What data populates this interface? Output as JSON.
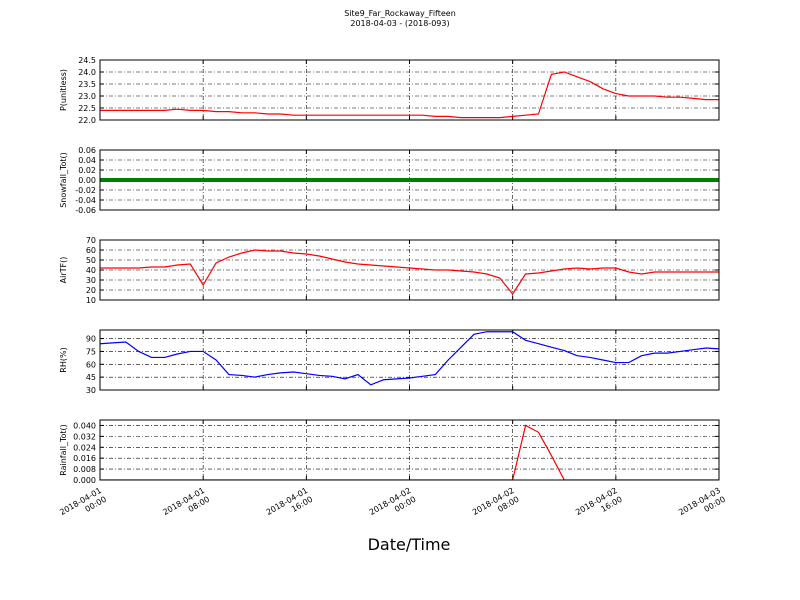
{
  "chart_data": [
    {
      "type": "line",
      "title": "Site9_Far_Rockaway_Fifteen",
      "subtitle": "2018-04-03 - (2018-093)",
      "ylabel": "P(unitless)",
      "color": "#ff0000",
      "x": [
        "2018-04-01 00:00",
        "2018-04-01 01:00",
        "2018-04-01 02:00",
        "2018-04-01 03:00",
        "2018-04-01 04:00",
        "2018-04-01 05:00",
        "2018-04-01 06:00",
        "2018-04-01 07:00",
        "2018-04-01 08:00",
        "2018-04-01 09:00",
        "2018-04-01 10:00",
        "2018-04-01 11:00",
        "2018-04-01 12:00",
        "2018-04-01 13:00",
        "2018-04-01 14:00",
        "2018-04-01 15:00",
        "2018-04-01 16:00",
        "2018-04-01 17:00",
        "2018-04-01 18:00",
        "2018-04-01 19:00",
        "2018-04-01 20:00",
        "2018-04-01 21:00",
        "2018-04-01 22:00",
        "2018-04-01 23:00",
        "2018-04-02 00:00",
        "2018-04-02 01:00",
        "2018-04-02 02:00",
        "2018-04-02 03:00",
        "2018-04-02 04:00",
        "2018-04-02 05:00",
        "2018-04-02 06:00",
        "2018-04-02 07:00",
        "2018-04-02 08:00",
        "2018-04-02 09:00",
        "2018-04-02 10:00",
        "2018-04-02 11:00",
        "2018-04-02 12:00",
        "2018-04-02 13:00",
        "2018-04-02 14:00",
        "2018-04-02 15:00",
        "2018-04-02 16:00",
        "2018-04-02 17:00",
        "2018-04-02 18:00",
        "2018-04-02 19:00",
        "2018-04-02 20:00",
        "2018-04-02 21:00",
        "2018-04-02 22:00",
        "2018-04-02 23:00",
        "2018-04-03 00:00"
      ],
      "values": [
        22.4,
        22.4,
        22.4,
        22.4,
        22.4,
        22.4,
        22.45,
        22.4,
        22.4,
        22.35,
        22.35,
        22.3,
        22.3,
        22.25,
        22.25,
        22.2,
        22.2,
        22.2,
        22.2,
        22.2,
        22.2,
        22.2,
        22.2,
        22.2,
        22.2,
        22.2,
        22.15,
        22.15,
        22.1,
        22.1,
        22.1,
        22.1,
        22.15,
        22.2,
        22.25,
        23.9,
        24.0,
        23.8,
        23.6,
        23.3,
        23.1,
        23.0,
        23.0,
        23.0,
        22.95,
        22.95,
        22.9,
        22.85,
        22.85
      ],
      "xlim": [
        "2018-04-01 00:00",
        "2018-04-03 00:00"
      ],
      "ylim": [
        22.0,
        24.5
      ],
      "yticks": [
        {
          "value": 22.0,
          "label": "22.0"
        },
        22.5,
        {
          "value": 23.0,
          "label": "23.0"
        },
        23.5,
        {
          "value": 24.0,
          "label": "24.0"
        },
        24.5
      ],
      "grid": true
    },
    {
      "type": "line",
      "ylabel": "Snowfall_Tot()",
      "color": "#008000",
      "x": [
        "2018-04-01 00:00",
        "2018-04-01 01:00",
        "2018-04-01 02:00",
        "2018-04-01 03:00",
        "2018-04-01 04:00",
        "2018-04-01 05:00",
        "2018-04-01 06:00",
        "2018-04-01 07:00",
        "2018-04-01 08:00",
        "2018-04-01 09:00",
        "2018-04-01 10:00",
        "2018-04-01 11:00",
        "2018-04-01 12:00",
        "2018-04-01 13:00",
        "2018-04-01 14:00",
        "2018-04-01 15:00",
        "2018-04-01 16:00",
        "2018-04-01 17:00",
        "2018-04-01 18:00",
        "2018-04-01 19:00",
        "2018-04-01 20:00",
        "2018-04-01 21:00",
        "2018-04-01 22:00",
        "2018-04-01 23:00",
        "2018-04-02 00:00",
        "2018-04-02 01:00",
        "2018-04-02 02:00",
        "2018-04-02 03:00",
        "2018-04-02 04:00",
        "2018-04-02 05:00",
        "2018-04-02 06:00",
        "2018-04-02 07:00",
        "2018-04-02 08:00",
        "2018-04-02 09:00",
        "2018-04-02 10:00",
        "2018-04-02 11:00",
        "2018-04-02 12:00",
        "2018-04-02 13:00",
        "2018-04-02 14:00",
        "2018-04-02 15:00",
        "2018-04-02 16:00",
        "2018-04-02 17:00",
        "2018-04-02 18:00",
        "2018-04-02 19:00",
        "2018-04-02 20:00",
        "2018-04-02 21:00",
        "2018-04-02 22:00",
        "2018-04-02 23:00",
        "2018-04-03 00:00"
      ],
      "values": [
        0,
        0,
        0,
        0,
        0,
        0,
        0,
        0,
        0,
        0,
        0,
        0,
        0,
        0,
        0,
        0,
        0,
        0,
        0,
        0,
        0,
        0,
        0,
        0,
        0,
        0,
        0,
        0,
        0,
        0,
        0,
        0,
        0,
        0,
        0,
        0,
        0,
        0,
        0,
        0,
        0,
        0,
        0,
        0,
        0,
        0,
        0,
        0,
        0
      ],
      "xlim": [
        "2018-04-01 00:00",
        "2018-04-03 00:00"
      ],
      "ylim": [
        -0.06,
        0.06
      ],
      "yticks": [
        -0.06,
        -0.04,
        -0.02,
        {
          "value": 0,
          "label": "0.00"
        },
        0.02,
        0.04,
        0.06
      ],
      "grid": true
    },
    {
      "type": "line",
      "ylabel": "AirTF()",
      "color": "#ff0000",
      "x": [
        "2018-04-01 00:00",
        "2018-04-01 01:00",
        "2018-04-01 02:00",
        "2018-04-01 03:00",
        "2018-04-01 04:00",
        "2018-04-01 05:00",
        "2018-04-01 06:00",
        "2018-04-01 07:00",
        "2018-04-01 08:00",
        "2018-04-01 09:00",
        "2018-04-01 10:00",
        "2018-04-01 11:00",
        "2018-04-01 12:00",
        "2018-04-01 13:00",
        "2018-04-01 14:00",
        "2018-04-01 15:00",
        "2018-04-01 16:00",
        "2018-04-01 17:00",
        "2018-04-01 18:00",
        "2018-04-01 19:00",
        "2018-04-01 20:00",
        "2018-04-01 21:00",
        "2018-04-01 22:00",
        "2018-04-01 23:00",
        "2018-04-02 00:00",
        "2018-04-02 01:00",
        "2018-04-02 02:00",
        "2018-04-02 03:00",
        "2018-04-02 04:00",
        "2018-04-02 05:00",
        "2018-04-02 06:00",
        "2018-04-02 07:00",
        "2018-04-02 08:00",
        "2018-04-02 09:00",
        "2018-04-02 10:00",
        "2018-04-02 11:00",
        "2018-04-02 12:00",
        "2018-04-02 13:00",
        "2018-04-02 14:00",
        "2018-04-02 15:00",
        "2018-04-02 16:00",
        "2018-04-02 17:00",
        "2018-04-02 18:00",
        "2018-04-02 19:00",
        "2018-04-02 20:00",
        "2018-04-02 21:00",
        "2018-04-02 22:00",
        "2018-04-02 23:00",
        "2018-04-03 00:00"
      ],
      "values": [
        42,
        42,
        42,
        42,
        43,
        43,
        45,
        46,
        25,
        47,
        53,
        57,
        60,
        59,
        59,
        57,
        56,
        54,
        51,
        48,
        46,
        45,
        44,
        43,
        42,
        41,
        40,
        40,
        39,
        38,
        36,
        32,
        16,
        36,
        37,
        39,
        41,
        42,
        41,
        42,
        42,
        38,
        36,
        38,
        38,
        38,
        38,
        38,
        38
      ],
      "xlim": [
        "2018-04-01 00:00",
        "2018-04-03 00:00"
      ],
      "ylim": [
        10,
        70
      ],
      "yticks": [
        10,
        20,
        30,
        40,
        50,
        60,
        70
      ],
      "grid": true
    },
    {
      "type": "line",
      "ylabel": "RH(%)",
      "color": "#0000ff",
      "x": [
        "2018-04-01 00:00",
        "2018-04-01 01:00",
        "2018-04-01 02:00",
        "2018-04-01 03:00",
        "2018-04-01 04:00",
        "2018-04-01 05:00",
        "2018-04-01 06:00",
        "2018-04-01 07:00",
        "2018-04-01 08:00",
        "2018-04-01 09:00",
        "2018-04-01 10:00",
        "2018-04-01 11:00",
        "2018-04-01 12:00",
        "2018-04-01 13:00",
        "2018-04-01 14:00",
        "2018-04-01 15:00",
        "2018-04-01 16:00",
        "2018-04-01 17:00",
        "2018-04-01 18:00",
        "2018-04-01 19:00",
        "2018-04-01 20:00",
        "2018-04-01 21:00",
        "2018-04-01 22:00",
        "2018-04-01 23:00",
        "2018-04-02 00:00",
        "2018-04-02 01:00",
        "2018-04-02 02:00",
        "2018-04-02 03:00",
        "2018-04-02 04:00",
        "2018-04-02 05:00",
        "2018-04-02 06:00",
        "2018-04-02 07:00",
        "2018-04-02 08:00",
        "2018-04-02 09:00",
        "2018-04-02 10:00",
        "2018-04-02 11:00",
        "2018-04-02 12:00",
        "2018-04-02 13:00",
        "2018-04-02 14:00",
        "2018-04-02 15:00",
        "2018-04-02 16:00",
        "2018-04-02 17:00",
        "2018-04-02 18:00",
        "2018-04-02 19:00",
        "2018-04-02 20:00",
        "2018-04-02 21:00",
        "2018-04-02 22:00",
        "2018-04-02 23:00",
        "2018-04-03 00:00"
      ],
      "values": [
        84,
        85,
        86,
        75,
        68,
        68,
        72,
        75,
        75,
        65,
        48,
        47,
        45,
        48,
        50,
        51,
        49,
        47,
        46,
        43,
        48,
        36,
        42,
        43,
        44,
        46,
        48,
        65,
        80,
        95,
        98,
        98,
        98,
        88,
        84,
        80,
        76,
        70,
        68,
        65,
        62,
        62,
        70,
        73,
        73,
        75,
        77,
        79,
        78
      ],
      "xlim": [
        "2018-04-01 00:00",
        "2018-04-03 00:00"
      ],
      "ylim": [
        30,
        100
      ],
      "yticks": [
        30,
        45,
        60,
        75,
        90
      ],
      "grid": true
    },
    {
      "type": "line",
      "ylabel": "Rainfall_Tot()",
      "xlabel": "Date/Time",
      "color": "#ff0000",
      "x": [
        "2018-04-01 00:00",
        "2018-04-01 01:00",
        "2018-04-01 02:00",
        "2018-04-01 03:00",
        "2018-04-01 04:00",
        "2018-04-01 05:00",
        "2018-04-01 06:00",
        "2018-04-01 07:00",
        "2018-04-01 08:00",
        "2018-04-01 09:00",
        "2018-04-01 10:00",
        "2018-04-01 11:00",
        "2018-04-01 12:00",
        "2018-04-01 13:00",
        "2018-04-01 14:00",
        "2018-04-01 15:00",
        "2018-04-01 16:00",
        "2018-04-01 17:00",
        "2018-04-01 18:00",
        "2018-04-01 19:00",
        "2018-04-01 20:00",
        "2018-04-01 21:00",
        "2018-04-01 22:00",
        "2018-04-01 23:00",
        "2018-04-02 00:00",
        "2018-04-02 01:00",
        "2018-04-02 02:00",
        "2018-04-02 03:00",
        "2018-04-02 04:00",
        "2018-04-02 05:00",
        "2018-04-02 06:00",
        "2018-04-02 07:00",
        "2018-04-02 08:00",
        "2018-04-02 09:00",
        "2018-04-02 10:00",
        "2018-04-02 11:00",
        "2018-04-02 12:00",
        "2018-04-02 13:00",
        "2018-04-02 14:00",
        "2018-04-02 15:00",
        "2018-04-02 16:00",
        "2018-04-02 17:00",
        "2018-04-02 18:00",
        "2018-04-02 19:00",
        "2018-04-02 20:00",
        "2018-04-02 21:00",
        "2018-04-02 22:00",
        "2018-04-02 23:00",
        "2018-04-03 00:00"
      ],
      "values": [
        0,
        0,
        0,
        0,
        0,
        0,
        0,
        0,
        0,
        0,
        0,
        0,
        0,
        0,
        0,
        0,
        0,
        0,
        0,
        0,
        0,
        0,
        0,
        0,
        0,
        0,
        0,
        0,
        0,
        0,
        0,
        0,
        0,
        0.04,
        0.035,
        0.018,
        0,
        0,
        0,
        0,
        0,
        0,
        0,
        0,
        0,
        0,
        0,
        0,
        0
      ],
      "xlim": [
        "2018-04-01 00:00",
        "2018-04-03 00:00"
      ],
      "ylim": [
        0,
        0.044
      ],
      "yticks": [
        {
          "value": 0,
          "label": "0.000"
        },
        0.008,
        0.016,
        0.024,
        0.032,
        {
          "value": 0.04,
          "label": "0.040"
        }
      ],
      "xticks": [
        {
          "value": "2018-04-01 00:00",
          "label": [
            "2018-04-01",
            "00:00"
          ]
        },
        {
          "value": "2018-04-01 08:00",
          "label": [
            "2018-04-01",
            "08:00"
          ]
        },
        {
          "value": "2018-04-01 16:00",
          "label": [
            "2018-04-01",
            "16:00"
          ]
        },
        {
          "value": "2018-04-02 00:00",
          "label": [
            "2018-04-02",
            "00:00"
          ]
        },
        {
          "value": "2018-04-02 08:00",
          "label": [
            "2018-04-02",
            "08:00"
          ]
        },
        {
          "value": "2018-04-02 16:00",
          "label": [
            "2018-04-02",
            "16:00"
          ]
        },
        {
          "value": "2018-04-03 00:00",
          "label": [
            "2018-04-03",
            "00:00"
          ]
        }
      ],
      "grid": true
    }
  ]
}
